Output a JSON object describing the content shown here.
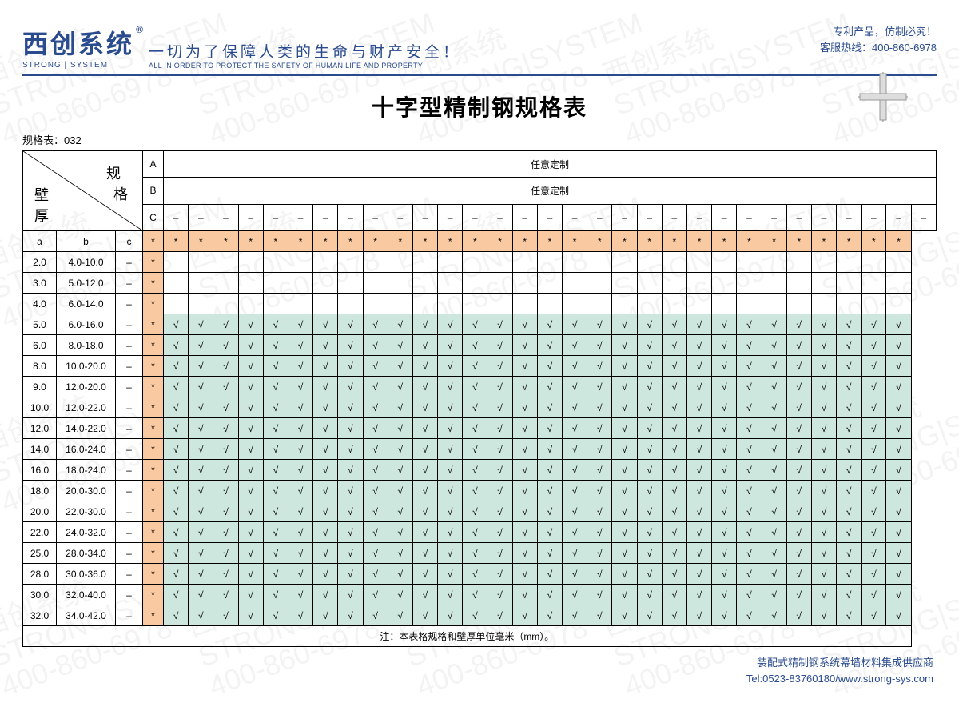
{
  "header": {
    "logo_cn": "西创系统",
    "logo_reg": "®",
    "logo_en": "STRONG | SYSTEM",
    "slogan_cn": "一切为了保障人类的生命与财产安全！",
    "slogan_en": "ALL IN ORDER TO PROTECT THE SAFETY OF HUMAN LIFE AND PROPERTY",
    "right_line1": "专利产品，仿制必究！",
    "right_line2": "客服热线：400-860-6978"
  },
  "title": "十字型精制钢规格表",
  "table_code": "规格表：032",
  "watermark": {
    "line1": "西创系统",
    "line2": "STRONG|SYSTEM",
    "line3": "400-860-6978"
  },
  "diag": {
    "label_spec_1": "规",
    "label_spec_2": "格",
    "label_wall_1": "壁",
    "label_wall_2": "厚"
  },
  "spec_header_rows": {
    "A_label": "A",
    "A_text": "任意定制",
    "B_label": "B",
    "B_text": "任意定制",
    "C_label": "C",
    "C_cell": "–"
  },
  "col_headers": {
    "a": "a",
    "b": "b",
    "c": "c",
    "star": "*"
  },
  "column_count": 31,
  "rows": [
    {
      "a": "2.0",
      "b": "4.0-10.0",
      "c": "–",
      "first": "*",
      "fill": "none"
    },
    {
      "a": "3.0",
      "b": "5.0-12.0",
      "c": "–",
      "first": "*",
      "fill": "none"
    },
    {
      "a": "4.0",
      "b": "6.0-14.0",
      "c": "–",
      "first": "*",
      "fill": "none"
    },
    {
      "a": "5.0",
      "b": "6.0-16.0",
      "c": "–",
      "first": "*",
      "fill": "check"
    },
    {
      "a": "6.0",
      "b": "8.0-18.0",
      "c": "–",
      "first": "*",
      "fill": "check"
    },
    {
      "a": "8.0",
      "b": "10.0-20.0",
      "c": "–",
      "first": "*",
      "fill": "check"
    },
    {
      "a": "9.0",
      "b": "12.0-20.0",
      "c": "–",
      "first": "*",
      "fill": "check"
    },
    {
      "a": "10.0",
      "b": "12.0-22.0",
      "c": "–",
      "first": "*",
      "fill": "check"
    },
    {
      "a": "12.0",
      "b": "14.0-22.0",
      "c": "–",
      "first": "*",
      "fill": "check"
    },
    {
      "a": "14.0",
      "b": "16.0-24.0",
      "c": "–",
      "first": "*",
      "fill": "check"
    },
    {
      "a": "16.0",
      "b": "18.0-24.0",
      "c": "–",
      "first": "*",
      "fill": "check"
    },
    {
      "a": "18.0",
      "b": "20.0-30.0",
      "c": "–",
      "first": "*",
      "fill": "check"
    },
    {
      "a": "20.0",
      "b": "22.0-30.0",
      "c": "–",
      "first": "*",
      "fill": "check"
    },
    {
      "a": "22.0",
      "b": "24.0-32.0",
      "c": "–",
      "first": "*",
      "fill": "check"
    },
    {
      "a": "25.0",
      "b": "28.0-34.0",
      "c": "–",
      "first": "*",
      "fill": "check"
    },
    {
      "a": "28.0",
      "b": "30.0-36.0",
      "c": "–",
      "first": "*",
      "fill": "check"
    },
    {
      "a": "30.0",
      "b": "32.0-40.0",
      "c": "–",
      "first": "*",
      "fill": "check"
    },
    {
      "a": "32.0",
      "b": "34.0-42.0",
      "c": "–",
      "first": "*",
      "fill": "check"
    }
  ],
  "check_mark": "√",
  "footnote": "注：本表格规格和壁厚单位毫米（mm）。",
  "footer": {
    "line1": "装配式精制钢系统幕墙材料集成供应商",
    "line2": "Tel:0523-83760180/www.strong-sys.com"
  },
  "colors": {
    "brand": "#2a4b8d",
    "orange": "#f9caa2",
    "teal": "#cde6de",
    "border": "#000000",
    "background": "#ffffff"
  },
  "column_widths": {
    "a": "42px",
    "b": "74px",
    "c": "34px",
    "label": "26px",
    "data": "auto"
  }
}
